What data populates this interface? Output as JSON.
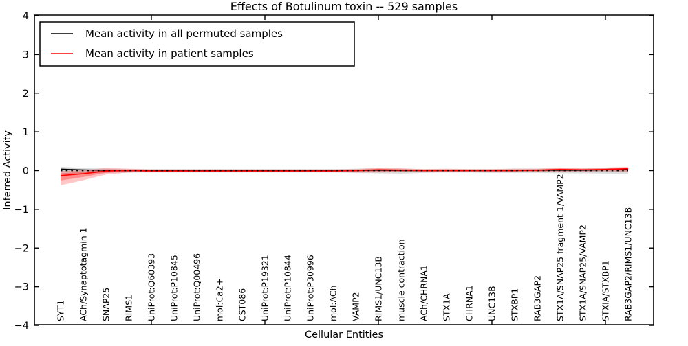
{
  "chart_data": {
    "type": "line",
    "title": "Effects of Botulinum toxin -- 529 samples",
    "xlabel": "Cellular Entities",
    "ylabel": "Inferred Activity",
    "ylim": [
      -4,
      4
    ],
    "ytick_values": [
      4,
      3,
      2,
      1,
      0,
      -1,
      -2,
      -3,
      -4
    ],
    "ytick_labels": [
      "4",
      "3",
      "2",
      "1",
      "0",
      "−1",
      "−2",
      "−3",
      "−4"
    ],
    "xtick_major_indices": [
      4,
      9,
      14,
      19,
      24
    ],
    "grid": false,
    "legend_position": "upper-left",
    "categories": [
      "SYT1",
      "ACh/Synaptotagmin 1",
      "SNAP25",
      "RIMS1",
      "UniProt:Q60393",
      "UniProt:P10845",
      "UniProt:Q00496",
      "mol:Ca2+",
      "CST086",
      "UniProt:P19321",
      "UniProt:P10844",
      "UniProt:P30996",
      "mol:ACh",
      "VAMP2",
      "RIMS1/UNC13B",
      "muscle contraction",
      "ACh/CHRNA1",
      "STX1A",
      "CHRNA1",
      "UNC13B",
      "STXBP1",
      "RAB3GAP2",
      "STX1A/SNAP25 fragment 1/VAMP2",
      "STX1A/SNAP25/VAMP2",
      "STXIA/STXBP1",
      "RAB3GAP2/RIMS1/UNC13B"
    ],
    "series": [
      {
        "name": "Mean activity in all permuted samples",
        "color": "#000000",
        "values": [
          0.04,
          0.02,
          0.01,
          0.0,
          0.0,
          0.0,
          0.0,
          0.0,
          0.0,
          0.0,
          0.0,
          0.0,
          0.0,
          0.0,
          0.01,
          0.0,
          0.0,
          0.0,
          0.0,
          0.0,
          0.0,
          0.01,
          0.01,
          0.01,
          0.02,
          0.03
        ],
        "band_upper": [
          0.1,
          0.07,
          0.05,
          0.04,
          0.04,
          0.04,
          0.04,
          0.04,
          0.04,
          0.04,
          0.04,
          0.04,
          0.04,
          0.05,
          0.05,
          0.05,
          0.04,
          0.04,
          0.04,
          0.04,
          0.05,
          0.05,
          0.05,
          0.05,
          0.06,
          0.07
        ],
        "band_lower": [
          -0.08,
          -0.07,
          -0.06,
          -0.05,
          -0.05,
          -0.05,
          -0.05,
          -0.05,
          -0.05,
          -0.05,
          -0.05,
          -0.05,
          -0.05,
          -0.06,
          -0.07,
          -0.08,
          -0.06,
          -0.05,
          -0.05,
          -0.06,
          -0.06,
          -0.06,
          -0.07,
          -0.07,
          -0.08,
          -0.09
        ]
      },
      {
        "name": "Mean activity in patient samples",
        "color": "#ff0000",
        "values": [
          -0.13,
          -0.08,
          -0.01,
          0.0,
          -0.01,
          -0.01,
          -0.01,
          -0.01,
          -0.01,
          -0.01,
          -0.01,
          -0.01,
          -0.01,
          0.0,
          0.02,
          0.01,
          0.0,
          0.0,
          0.0,
          0.0,
          0.0,
          0.01,
          0.03,
          0.02,
          0.03,
          0.05
        ],
        "band_upper": [
          -0.01,
          0.01,
          0.07,
          0.05,
          0.03,
          0.03,
          0.03,
          0.03,
          0.03,
          0.03,
          0.03,
          0.03,
          0.03,
          0.04,
          0.08,
          0.06,
          0.04,
          0.05,
          0.04,
          0.04,
          0.05,
          0.05,
          0.08,
          0.07,
          0.08,
          0.1
        ],
        "band_lower": [
          -0.38,
          -0.25,
          -0.1,
          -0.05,
          -0.04,
          -0.04,
          -0.04,
          -0.04,
          -0.04,
          -0.04,
          -0.04,
          -0.04,
          -0.04,
          -0.05,
          -0.05,
          -0.04,
          -0.04,
          -0.04,
          -0.04,
          -0.04,
          -0.04,
          -0.04,
          -0.04,
          -0.03,
          -0.02,
          -0.04
        ]
      }
    ],
    "zero_reference_line": {
      "y": 0,
      "style": "dotted",
      "color": "#000000"
    }
  },
  "colors": {
    "frame": "#000000",
    "permuted_line": "#000000",
    "patient_line": "#ff0000",
    "permuted_band": "#888888",
    "patient_band": "#ff0000",
    "background": "#ffffff"
  }
}
